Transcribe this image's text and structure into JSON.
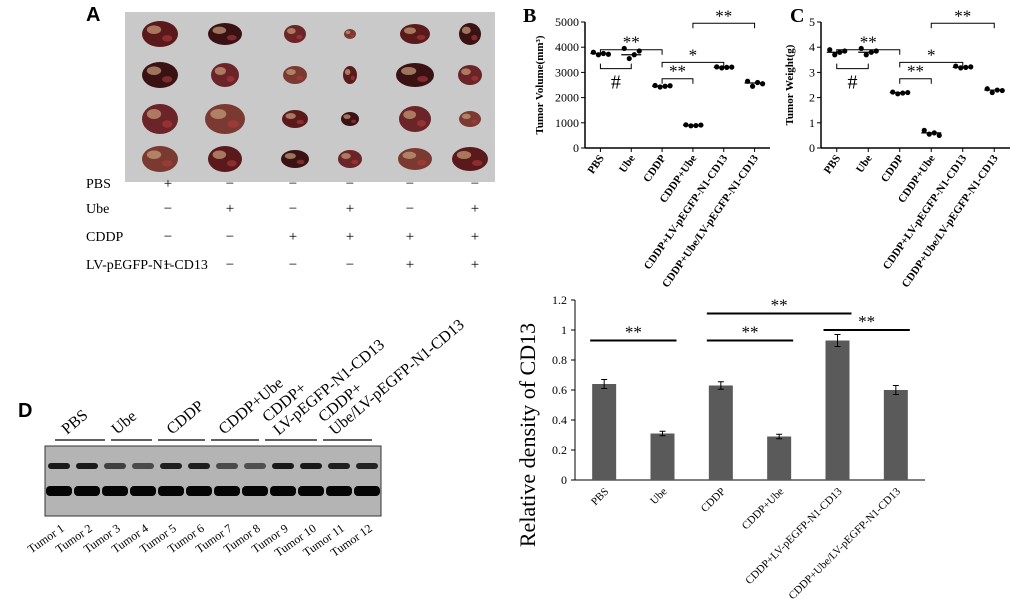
{
  "panel_a": {
    "letter": "A",
    "treatment_rows": [
      {
        "label": "PBS",
        "signs": [
          "+",
          "−",
          "−",
          "−",
          "−",
          "−"
        ]
      },
      {
        "label": "Ube",
        "signs": [
          "−",
          "+",
          "−",
          "+",
          "−",
          "+"
        ]
      },
      {
        "label": "CDDP",
        "signs": [
          "−",
          "−",
          "+",
          "+",
          "+",
          "+"
        ]
      },
      {
        "label": "LV-pEGFP-N1-CD13",
        "signs": [
          "−",
          "−",
          "−",
          "−",
          "+",
          "+"
        ]
      }
    ]
  },
  "panel_d": {
    "letter": "D",
    "group_labels": [
      "PBS",
      "Ube",
      "CDDP",
      "CDDP+Ube",
      "CDDP+ LV-pEGFP-N1-CD13",
      "CDDP+ Ube/LV-pEGFP-N1-CD13"
    ],
    "lane_labels": [
      "Tumor 1",
      "Tumor 2",
      "Tumor 3",
      "Tumor 4",
      "Tumor 5",
      "Tumor 6",
      "Tumor 7",
      "Tumor 8",
      "Tumor 9",
      "Tumor 10",
      "Tumor 11",
      "Tumor 12"
    ]
  },
  "chart_data": [
    {
      "id": "B",
      "letter": "B",
      "type": "scatter",
      "ylabel": "Tumor Volume(mm³)",
      "ylim": [
        0,
        5000
      ],
      "yticks": [
        0,
        1000,
        2000,
        3000,
        4000,
        5000
      ],
      "categories": [
        "PBS",
        "Ube",
        "CDDP",
        "CDDP+Ube",
        "CDDP+LV-pEGFP-N1-CD13",
        "CDDP+Ube/LV-pEGFP-N1-CD13"
      ],
      "means": [
        3750,
        3700,
        2450,
        900,
        3200,
        2580
      ],
      "points": [
        [
          3800,
          3700,
          3750,
          3720
        ],
        [
          3950,
          3550,
          3700,
          3850
        ],
        [
          2480,
          2420,
          2450,
          2470
        ],
        [
          920,
          880,
          890,
          910
        ],
        [
          3220,
          3180,
          3200,
          3210
        ],
        [
          2650,
          2450,
          2600,
          2550
        ]
      ],
      "annotations": [
        {
          "from": 0,
          "to": 2,
          "label": "**"
        },
        {
          "from": 3,
          "to": 5,
          "label": "**"
        },
        {
          "from": 2,
          "to": 4,
          "label": "*"
        },
        {
          "from": 2,
          "to": 3,
          "label": "**"
        },
        {
          "from": 0,
          "to": 1,
          "label": "#"
        }
      ]
    },
    {
      "id": "C",
      "letter": "C",
      "type": "scatter",
      "ylabel": "Tumor Weight(g)",
      "ylim": [
        0,
        5
      ],
      "yticks": [
        0,
        1,
        2,
        3,
        4,
        5
      ],
      "categories": [
        "PBS",
        "Ube",
        "CDDP",
        "CDDP+Ube",
        "CDDP+LV-pEGFP-N1-CD13",
        "CDDP+Ube/LV-pEGFP-N1-CD13"
      ],
      "means": [
        3.8,
        3.8,
        2.2,
        0.6,
        3.2,
        2.3
      ],
      "points": [
        [
          3.9,
          3.7,
          3.8,
          3.85
        ],
        [
          3.95,
          3.7,
          3.8,
          3.85
        ],
        [
          2.22,
          2.15,
          2.18,
          2.2
        ],
        [
          0.7,
          0.55,
          0.6,
          0.5
        ],
        [
          3.25,
          3.18,
          3.2,
          3.22
        ],
        [
          2.35,
          2.2,
          2.3,
          2.28
        ]
      ],
      "annotations": [
        {
          "from": 0,
          "to": 2,
          "label": "**"
        },
        {
          "from": 3,
          "to": 5,
          "label": "**"
        },
        {
          "from": 2,
          "to": 4,
          "label": "*"
        },
        {
          "from": 2,
          "to": 3,
          "label": "**"
        },
        {
          "from": 0,
          "to": 1,
          "label": "#"
        }
      ]
    },
    {
      "id": "E",
      "type": "bar",
      "ylabel": "Relative density of CD13",
      "ylim": [
        0,
        1.2
      ],
      "yticks": [
        "0",
        "0.2",
        "0.4",
        "0.6",
        "0.8",
        "1",
        "1.2"
      ],
      "categories": [
        "PBS",
        "Ube",
        "CDDP",
        "CDDP+Ube",
        "CDDP+LV-pEGFP-N1-CD13",
        "CDDP+Ube/LV-pEGFP-N1-CD13"
      ],
      "values": [
        0.64,
        0.31,
        0.63,
        0.29,
        0.93,
        0.6
      ],
      "errors": [
        0.03,
        0.015,
        0.025,
        0.015,
        0.04,
        0.03
      ],
      "annotations": [
        {
          "from": 0,
          "to": 1,
          "label": "**"
        },
        {
          "from": 2,
          "to": 3,
          "label": "**"
        },
        {
          "from": 2,
          "to": 4,
          "label": "**"
        },
        {
          "from": 4,
          "to": 5,
          "label": "**"
        }
      ]
    }
  ]
}
